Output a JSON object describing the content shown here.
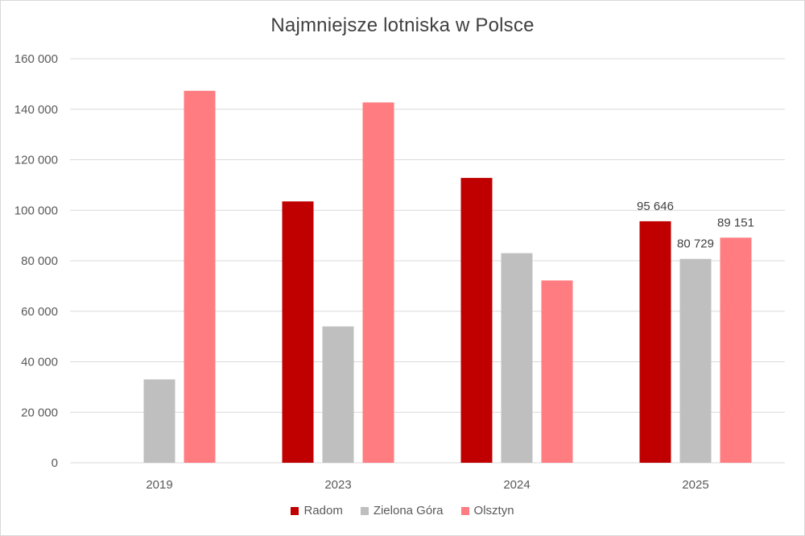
{
  "chart_data": {
    "type": "bar",
    "title": "Najmniejsze lotniska w Polsce",
    "categories": [
      "2019",
      "2023",
      "2024",
      "2025"
    ],
    "series": [
      {
        "name": "Radom",
        "color": "#c00000",
        "values": [
          null,
          103500,
          112800,
          95646
        ]
      },
      {
        "name": "Zielona Góra",
        "color": "#bfbfbf",
        "values": [
          33000,
          54000,
          83000,
          80729
        ]
      },
      {
        "name": "Olsztyn",
        "color": "#ff7c80",
        "values": [
          147300,
          142700,
          72200,
          89151
        ]
      }
    ],
    "data_labels": [
      {
        "series": 0,
        "category": 3,
        "text": "95 646"
      },
      {
        "series": 1,
        "category": 3,
        "text": "80 729"
      },
      {
        "series": 2,
        "category": 3,
        "text": "89 151"
      }
    ],
    "ylim": [
      0,
      160000
    ],
    "y_ticks": [
      "0",
      "20 000",
      "40 000",
      "60 000",
      "80 000",
      "100 000",
      "120 000",
      "140 000",
      "160 000"
    ],
    "y_tick_values": [
      0,
      20000,
      40000,
      60000,
      80000,
      100000,
      120000,
      140000,
      160000
    ],
    "grid": true,
    "legend_position": "bottom",
    "xlabel": "",
    "ylabel": ""
  }
}
